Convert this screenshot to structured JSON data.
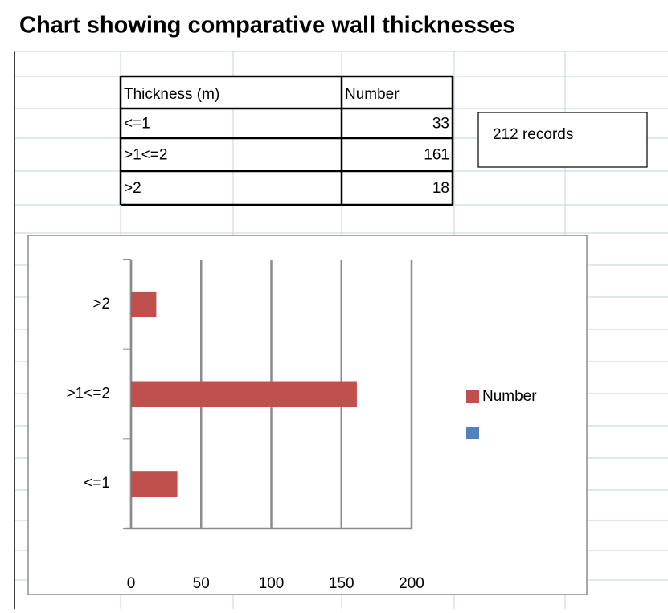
{
  "header": {
    "title": "Chart showing comparative wall thicknesses"
  },
  "table": {
    "columns": [
      "Thickness  (m)",
      "Number"
    ],
    "rows": [
      [
        "<=1",
        33
      ],
      [
        ">1<=2",
        161
      ],
      [
        ">2",
        18
      ]
    ]
  },
  "note": "212 records",
  "chart_data": {
    "type": "bar",
    "orientation": "horizontal",
    "categories": [
      "<=1",
      ">1<=2",
      ">2"
    ],
    "series": [
      {
        "name": "Number",
        "color": "#c0504d",
        "values": [
          33,
          161,
          18
        ]
      },
      {
        "name": null,
        "color": "#4f81bd",
        "values": [
          null,
          null,
          null
        ]
      }
    ],
    "xlim": [
      0,
      200
    ],
    "xticks": [
      0,
      50,
      100,
      150,
      200
    ],
    "grid": true,
    "legend": "right"
  }
}
